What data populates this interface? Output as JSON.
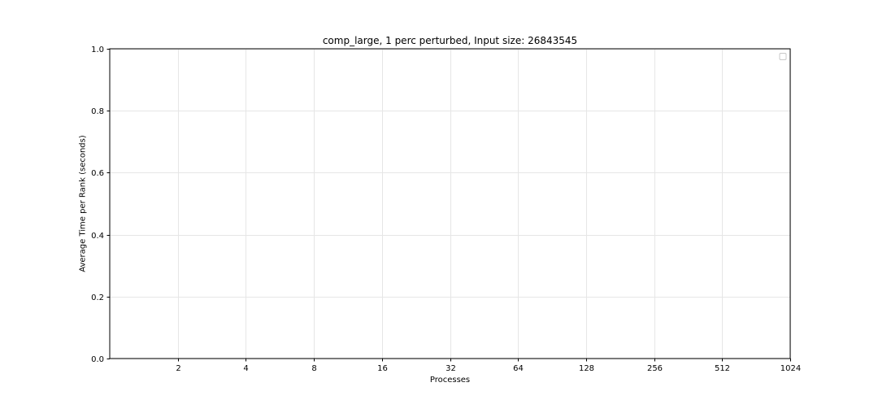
{
  "chart_data": {
    "type": "line",
    "title": "comp_large, 1 perc perturbed, Input size: 26843545",
    "xlabel": "Processes",
    "ylabel": "Average Time per Rank (seconds)",
    "x_scale": "log2",
    "x_ticks": [
      2,
      4,
      8,
      16,
      32,
      64,
      128,
      256,
      512,
      1024
    ],
    "x_tick_labels": [
      "2",
      "4",
      "8",
      "16",
      "32",
      "64",
      "128",
      "256",
      "512",
      "1024"
    ],
    "y_ticks": [
      0.0,
      0.2,
      0.4,
      0.6,
      0.8,
      1.0
    ],
    "y_tick_labels": [
      "0.0",
      "0.2",
      "0.4",
      "0.6",
      "0.8",
      "1.0"
    ],
    "ylim": [
      0.0,
      1.0
    ],
    "grid": true,
    "legend": {
      "placement": "top-right",
      "entries": []
    },
    "series": []
  }
}
